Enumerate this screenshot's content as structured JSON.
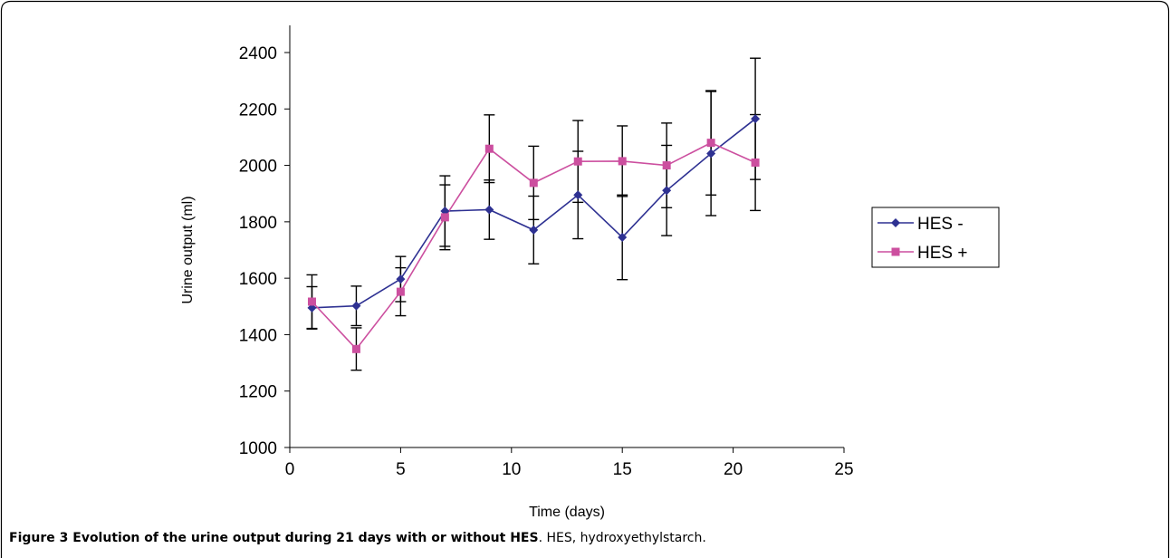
{
  "figure": {
    "caption_label": "Figure 3",
    "caption_title": "Evolution of the urine output during 21 days with or without HES",
    "caption_text": ". HES, hydroxyethylstarch."
  },
  "chart_data": {
    "type": "line",
    "xlabel": "Time (days)",
    "ylabel": "Urine output (ml)",
    "xlim": [
      0,
      25
    ],
    "ylim": [
      1000,
      2400
    ],
    "xticks": [
      0,
      5,
      10,
      15,
      20,
      25
    ],
    "yticks": [
      1000,
      1200,
      1400,
      1600,
      1800,
      2000,
      2200,
      2400
    ],
    "grid": false,
    "legend_position": "right",
    "x": [
      1,
      3,
      5,
      7,
      9,
      11,
      13,
      15,
      17,
      19,
      21
    ],
    "series": [
      {
        "name": "HES -",
        "color": "#2e3192",
        "marker": "diamond",
        "values": [
          1495,
          1502,
          1597,
          1838,
          1843,
          1771,
          1895,
          1745,
          1911,
          2042,
          2165
        ],
        "error": [
          75,
          70,
          80,
          125,
          105,
          120,
          155,
          150,
          160,
          220,
          215
        ]
      },
      {
        "name": "HES +",
        "color": "#cc4f9f",
        "marker": "square",
        "values": [
          1517,
          1349,
          1552,
          1816,
          2059,
          1938,
          2014,
          2015,
          2000,
          2080,
          2010
        ],
        "error": [
          95,
          75,
          85,
          115,
          120,
          130,
          145,
          125,
          150,
          185,
          170
        ]
      }
    ]
  }
}
